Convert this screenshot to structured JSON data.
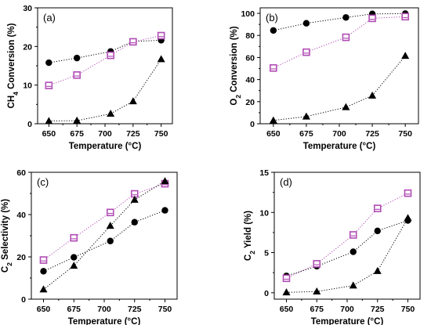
{
  "colors": {
    "circles": "#000000",
    "triangles": "#000000",
    "squares": "#b04cb4",
    "square_fill": "#ffffff"
  },
  "chart_data": [
    {
      "type": "line",
      "panel_label": "(a)",
      "xlabel": "Temperature (°C)",
      "ylabel": {
        "prefix": "CH",
        "sub": "4",
        "suffix": " Conversion (%)"
      },
      "xlim": [
        640,
        760
      ],
      "ylim": [
        0,
        30
      ],
      "x_ticks": [
        650,
        675,
        700,
        725,
        750
      ],
      "y_ticks": [
        0,
        10,
        20,
        30
      ],
      "x": [
        650,
        675,
        705,
        725,
        750
      ],
      "series": [
        {
          "marker": "circle",
          "values": [
            15.8,
            17.0,
            18.7,
            21.3,
            21.6
          ]
        },
        {
          "marker": "square",
          "values": [
            9.9,
            12.6,
            17.7,
            21.2,
            22.8
          ]
        },
        {
          "marker": "triangle",
          "values": [
            0.7,
            0.8,
            2.6,
            5.8,
            16.7
          ]
        }
      ]
    },
    {
      "type": "line",
      "panel_label": "(b)",
      "xlabel": "Temperature (°C)",
      "ylabel": {
        "prefix": "O",
        "sub": "2",
        "suffix": " Conversion (%)"
      },
      "xlim": [
        640,
        760
      ],
      "ylim": [
        0,
        105
      ],
      "x_ticks": [
        650,
        675,
        700,
        725,
        750
      ],
      "y_ticks": [
        0,
        20,
        40,
        60,
        80,
        100
      ],
      "x": [
        650,
        675,
        705,
        725,
        750
      ],
      "series": [
        {
          "marker": "circle",
          "values": [
            84.5,
            91.0,
            96.3,
            99.5,
            99.8
          ]
        },
        {
          "marker": "square",
          "values": [
            50.5,
            64.8,
            78.3,
            95.5,
            97.0
          ]
        },
        {
          "marker": "triangle",
          "values": [
            3.0,
            6.5,
            15.0,
            25.5,
            61.5
          ]
        }
      ]
    },
    {
      "type": "line",
      "panel_label": "(c)",
      "xlabel": "Temperature (°C)",
      "ylabel": {
        "prefix": "C",
        "sub": "2",
        "suffix": " Selectivity (%)"
      },
      "xlim": [
        640,
        760
      ],
      "ylim": [
        0,
        60
      ],
      "x_ticks": [
        650,
        675,
        700,
        725,
        750
      ],
      "y_ticks": [
        0,
        20,
        40,
        60
      ],
      "x": [
        650,
        675,
        705,
        725,
        750
      ],
      "series": [
        {
          "marker": "circle",
          "values": [
            13.2,
            19.8,
            27.5,
            36.4,
            42.0
          ]
        },
        {
          "marker": "square",
          "values": [
            18.5,
            29.0,
            41.0,
            49.8,
            54.6
          ]
        },
        {
          "marker": "triangle",
          "values": [
            4.6,
            15.8,
            34.7,
            47.0,
            55.8
          ]
        }
      ]
    },
    {
      "type": "line",
      "panel_label": "(d)",
      "xlabel": "Temperature (°C)",
      "ylabel": {
        "prefix": "C",
        "sub": "2",
        "suffix": " Yield (%)"
      },
      "xlim": [
        640,
        760
      ],
      "ylim": [
        -0.8,
        15
      ],
      "x_ticks": [
        650,
        675,
        700,
        725,
        750
      ],
      "y_ticks": [
        0,
        5,
        10,
        15
      ],
      "x": [
        650,
        675,
        705,
        725,
        750
      ],
      "series": [
        {
          "marker": "circle",
          "values": [
            2.1,
            3.3,
            5.1,
            7.7,
            9.0
          ]
        },
        {
          "marker": "square",
          "values": [
            1.8,
            3.6,
            7.2,
            10.5,
            12.4
          ]
        },
        {
          "marker": "triangle",
          "values": [
            0.05,
            0.15,
            0.9,
            2.7,
            9.3
          ]
        }
      ]
    }
  ]
}
